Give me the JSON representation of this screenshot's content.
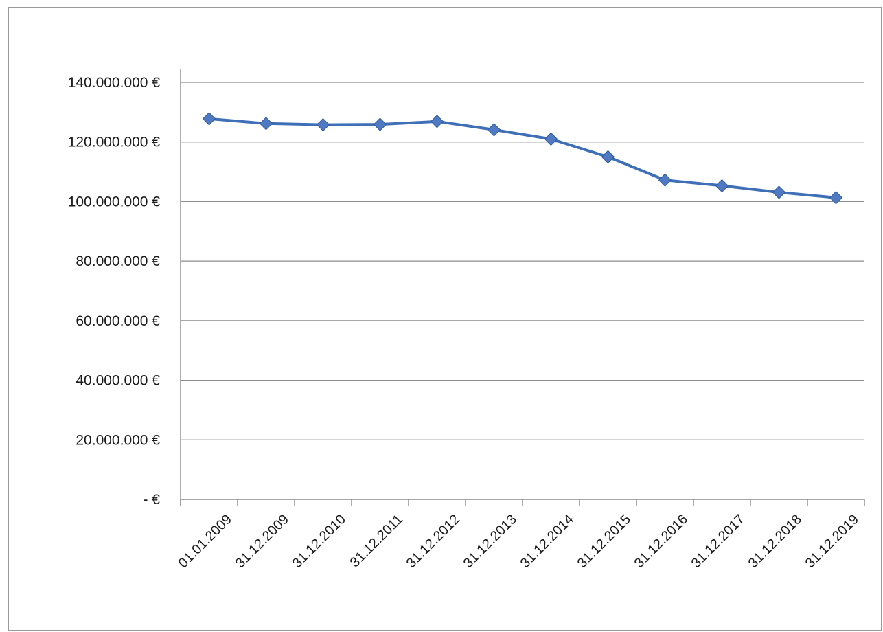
{
  "chart_data": {
    "type": "line",
    "title": "",
    "xlabel": "",
    "ylabel": "",
    "categories": [
      "01.01.2009",
      "31.12.2009",
      "31.12.2010",
      "31.12.2011",
      "31.12.2012",
      "31.12.2013",
      "31.12.2014",
      "31.12.2015",
      "31.12.2016",
      "31.12.2017",
      "31.12.2018",
      "31.12.2019"
    ],
    "series": [
      {
        "values": [
          127800000,
          126200000,
          125800000,
          125900000,
          126900000,
          124100000,
          121000000,
          115000000,
          107200000,
          105300000,
          103100000,
          101300000
        ]
      }
    ],
    "ylim": [
      0,
      140000000
    ],
    "y_ticks": [
      0,
      20000000,
      40000000,
      60000000,
      80000000,
      100000000,
      120000000,
      140000000
    ],
    "y_tick_labels": [
      "-   €",
      "20.000.000 €",
      "40.000.000 €",
      "60.000.000 €",
      "80.000.000 €",
      "100.000.000 €",
      "120.000.000 €",
      "140.000.000 €"
    ],
    "grid": true,
    "legend": "none",
    "marker": "diamond",
    "colors": {
      "line": "#3f6fb6",
      "marker": "#4f79c0",
      "marker_edge": "#2f5aa0"
    }
  }
}
